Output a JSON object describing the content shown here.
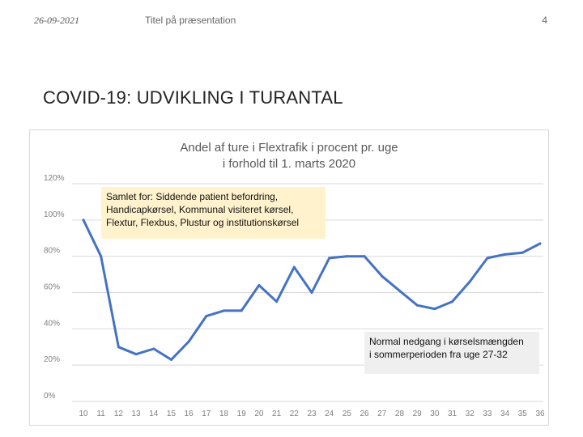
{
  "header": {
    "date": "26-09-2021",
    "title": "Titel på præsentation",
    "page_number": "4"
  },
  "slide": {
    "heading": "COVID-19: UDVIKLING I TURANTAL"
  },
  "annotations": {
    "yellow_lines": [
      "Samlet for: Siddende patient befordring,",
      "Handicapkørsel, Kommunal visiteret kørsel,",
      "Flextur, Flexbus, Plustur og institutionskørsel"
    ],
    "grey_lines": [
      "Normal nedgang i kørselsmængden",
      "i sommerperioden fra uge 27-32"
    ]
  },
  "colors": {
    "line": "#4472c4",
    "grid": "#d9d9d9",
    "axis_text": "#7f7f7f",
    "yellow_note": "#fff2cc",
    "grey_note": "#efefef"
  },
  "chart_data": {
    "type": "line",
    "title_lines": [
      "Andel af ture i Flextrafik i procent pr. uge",
      "i forhold til 1. marts 2020"
    ],
    "xlabel": "",
    "ylabel": "",
    "categories": [
      "10",
      "11",
      "12",
      "13",
      "14",
      "15",
      "16",
      "17",
      "18",
      "19",
      "20",
      "21",
      "22",
      "23",
      "24",
      "25",
      "26",
      "27",
      "28",
      "29",
      "30",
      "31",
      "32",
      "33",
      "34",
      "35",
      "36"
    ],
    "series": [
      {
        "values": [
          100,
          80,
          30,
          26,
          29,
          23,
          33,
          47,
          50,
          50,
          64,
          55,
          74,
          60,
          79,
          80,
          80,
          69,
          61,
          53,
          51,
          55,
          66,
          79,
          81,
          82,
          87
        ]
      }
    ],
    "y_ticks": [
      "0%",
      "20%",
      "40%",
      "60%",
      "80%",
      "100%",
      "120%"
    ],
    "ylim": [
      0,
      120
    ],
    "grid": true,
    "legend": "none"
  }
}
